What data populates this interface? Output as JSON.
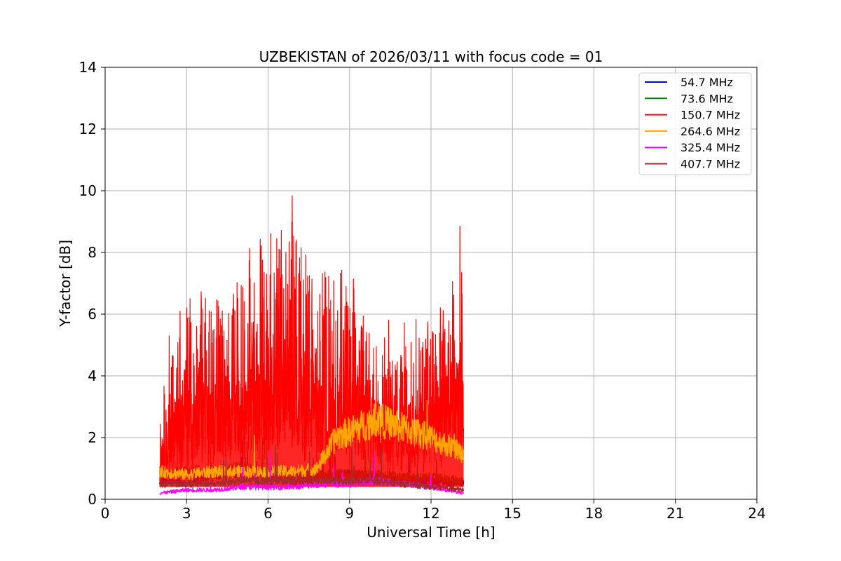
{
  "chart_data": {
    "type": "line",
    "title": "UZBEKISTAN of 2026/03/11 with focus code = 01",
    "xlabel": "Universal Time [h]",
    "ylabel": "Y-factor [dB]",
    "xlim": [
      0,
      24
    ],
    "ylim": [
      0,
      14
    ],
    "xticks": [
      "0",
      "3",
      "6",
      "9",
      "12",
      "15",
      "18",
      "21",
      "24"
    ],
    "yticks": [
      "0",
      "2",
      "4",
      "6",
      "8",
      "10",
      "12",
      "14"
    ],
    "grid": true,
    "legend_position": "top-right",
    "x_range_observed": [
      2.0,
      13.2
    ],
    "series": [
      {
        "name": " 54.7 MHz",
        "color": "#0000ff",
        "x": [
          2.0,
          3.0,
          4.0,
          5.0,
          6.0,
          7.0,
          8.0,
          9.0,
          10.0,
          11.0,
          12.0,
          13.2
        ],
        "values": [
          0.6,
          0.5,
          0.8,
          0.9,
          0.8,
          0.6,
          0.7,
          0.8,
          0.7,
          0.6,
          0.6,
          0.5
        ]
      },
      {
        "name": " 73.6 MHz",
        "color": "#008000",
        "x": [
          2.0,
          3.0,
          4.0,
          5.0,
          6.0,
          7.0,
          8.0,
          9.0,
          10.0,
          11.0,
          12.0,
          13.2
        ],
        "values": [
          0.8,
          0.9,
          0.9,
          1.0,
          0.9,
          0.8,
          0.8,
          0.8,
          0.8,
          0.7,
          0.7,
          0.6
        ]
      },
      {
        "name": "150.7 MHz",
        "color": "#ff0000",
        "x": [
          2.0,
          2.5,
          3.0,
          4.0,
          5.0,
          6.0,
          6.9,
          8.0,
          9.0,
          10.0,
          11.0,
          12.0,
          13.2
        ],
        "values": [
          2.5,
          5.5,
          6.0,
          6.5,
          7.0,
          7.5,
          8.9,
          6.5,
          6.5,
          5.5,
          5.0,
          5.5,
          8.0
        ]
      },
      {
        "name": "264.6 MHz",
        "color": "#ffa500",
        "x": [
          2.0,
          3.0,
          4.0,
          5.0,
          6.0,
          7.0,
          7.8,
          8.5,
          9.5,
          10.0,
          11.0,
          12.0,
          13.2
        ],
        "values": [
          0.9,
          0.8,
          0.9,
          0.9,
          0.9,
          0.9,
          1.0,
          2.0,
          2.4,
          2.6,
          2.3,
          2.0,
          1.5
        ]
      },
      {
        "name": "325.4 MHz",
        "color": "#ff00ff",
        "x": [
          2.0,
          3.0,
          4.0,
          5.0,
          6.0,
          7.0,
          8.0,
          9.0,
          10.0,
          11.0,
          12.0,
          13.2
        ],
        "values": [
          0.2,
          0.3,
          0.3,
          0.4,
          0.4,
          0.4,
          0.5,
          0.5,
          0.6,
          0.5,
          0.4,
          0.2
        ]
      },
      {
        "name": "407.7 MHz",
        "color": "#a52a2a",
        "x": [
          2.0,
          3.0,
          4.0,
          5.0,
          6.0,
          7.0,
          8.0,
          9.0,
          10.0,
          11.0,
          12.0,
          13.2
        ],
        "values": [
          0.5,
          0.5,
          0.5,
          0.6,
          0.6,
          0.6,
          0.6,
          0.6,
          0.6,
          0.5,
          0.4,
          0.3
        ]
      }
    ]
  }
}
